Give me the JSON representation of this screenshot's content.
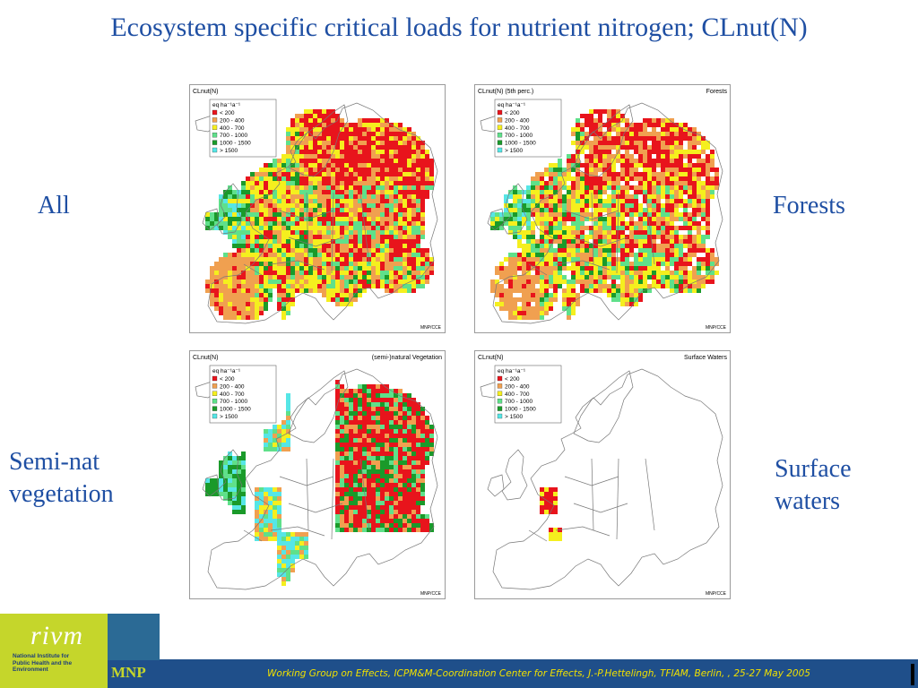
{
  "title": "Ecosystem specific critical loads for nutrient nitrogen; CLnut(N)",
  "labels": {
    "all": "All",
    "forests": "Forests",
    "seminat_line1": "Semi-nat",
    "seminat_line2": "vegetation",
    "surface_line1": "Surface",
    "surface_line2": "waters"
  },
  "legend": {
    "unit": "eq ha⁻¹a⁻¹",
    "classes": [
      {
        "label": "< 200",
        "color": "#e8141c"
      },
      {
        "label": "200 - 400",
        "color": "#f0a050"
      },
      {
        "label": "400 - 700",
        "color": "#f5ef1e"
      },
      {
        "label": "700 - 1000",
        "color": "#5fe08a"
      },
      {
        "label": "1000 - 1500",
        "color": "#1a9a2a"
      },
      {
        "label": "> 1500",
        "color": "#56e6e6"
      }
    ]
  },
  "maps": [
    {
      "id": "all",
      "title_left": "CLnut(N)",
      "title_right": "",
      "credit": "MNP/CCE",
      "coverage": "full"
    },
    {
      "id": "forests",
      "title_left": "CLnut(N) (5th perc.)",
      "title_right": "Forests",
      "credit": "MNP/CCE",
      "coverage": "forest"
    },
    {
      "id": "seminat",
      "title_left": "CLnut(N)",
      "title_right": "(semi-)natural Vegetation",
      "credit": "MNP/CCE",
      "coverage": "seminat"
    },
    {
      "id": "surface",
      "title_left": "CLnut(N)",
      "title_right": "Surface Waters",
      "credit": "MNP/CCE",
      "coverage": "surface"
    }
  ],
  "footer": {
    "org_logo": "rivm",
    "org_sub": "National Institute for Public Health and the Environment",
    "mnp": "MNP",
    "text": "Working Group on Effects, ICPM&M-Coordination Center for Effects, J.-P.Hettelingh, TFIAM, Berlin, , 25-27 May  2005"
  }
}
